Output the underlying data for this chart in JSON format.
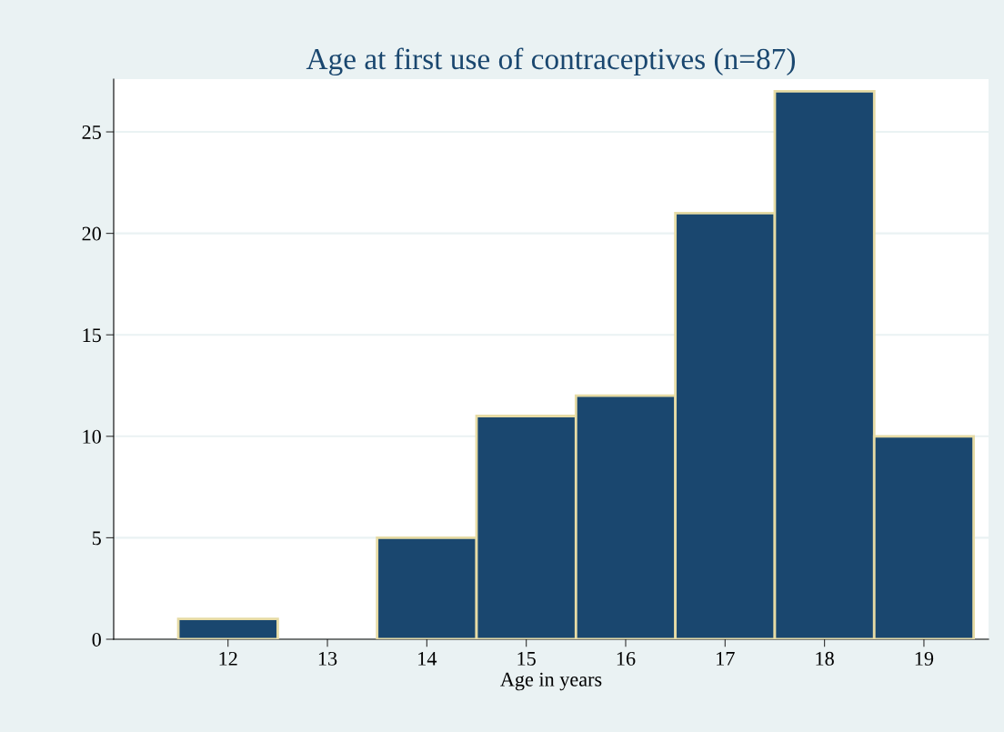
{
  "chart_data": {
    "type": "histogram",
    "title": "Age at first use of contraceptives (n=87)",
    "xlabel": "Age in years",
    "bins": [
      11.5,
      12.5,
      13.5,
      14.5,
      15.5,
      16.5,
      17.5,
      18.5,
      19.5
    ],
    "values": [
      1,
      0,
      5,
      11,
      12,
      21,
      27,
      10
    ],
    "color": "#1a476f",
    "xlim": [
      10.85,
      19.65
    ],
    "xticks": [
      12,
      13,
      14,
      15,
      16,
      17,
      18,
      19
    ],
    "ylim": [
      0,
      27.6
    ],
    "yticks": [
      0,
      5,
      10,
      15,
      20,
      25
    ],
    "grid": "y"
  }
}
